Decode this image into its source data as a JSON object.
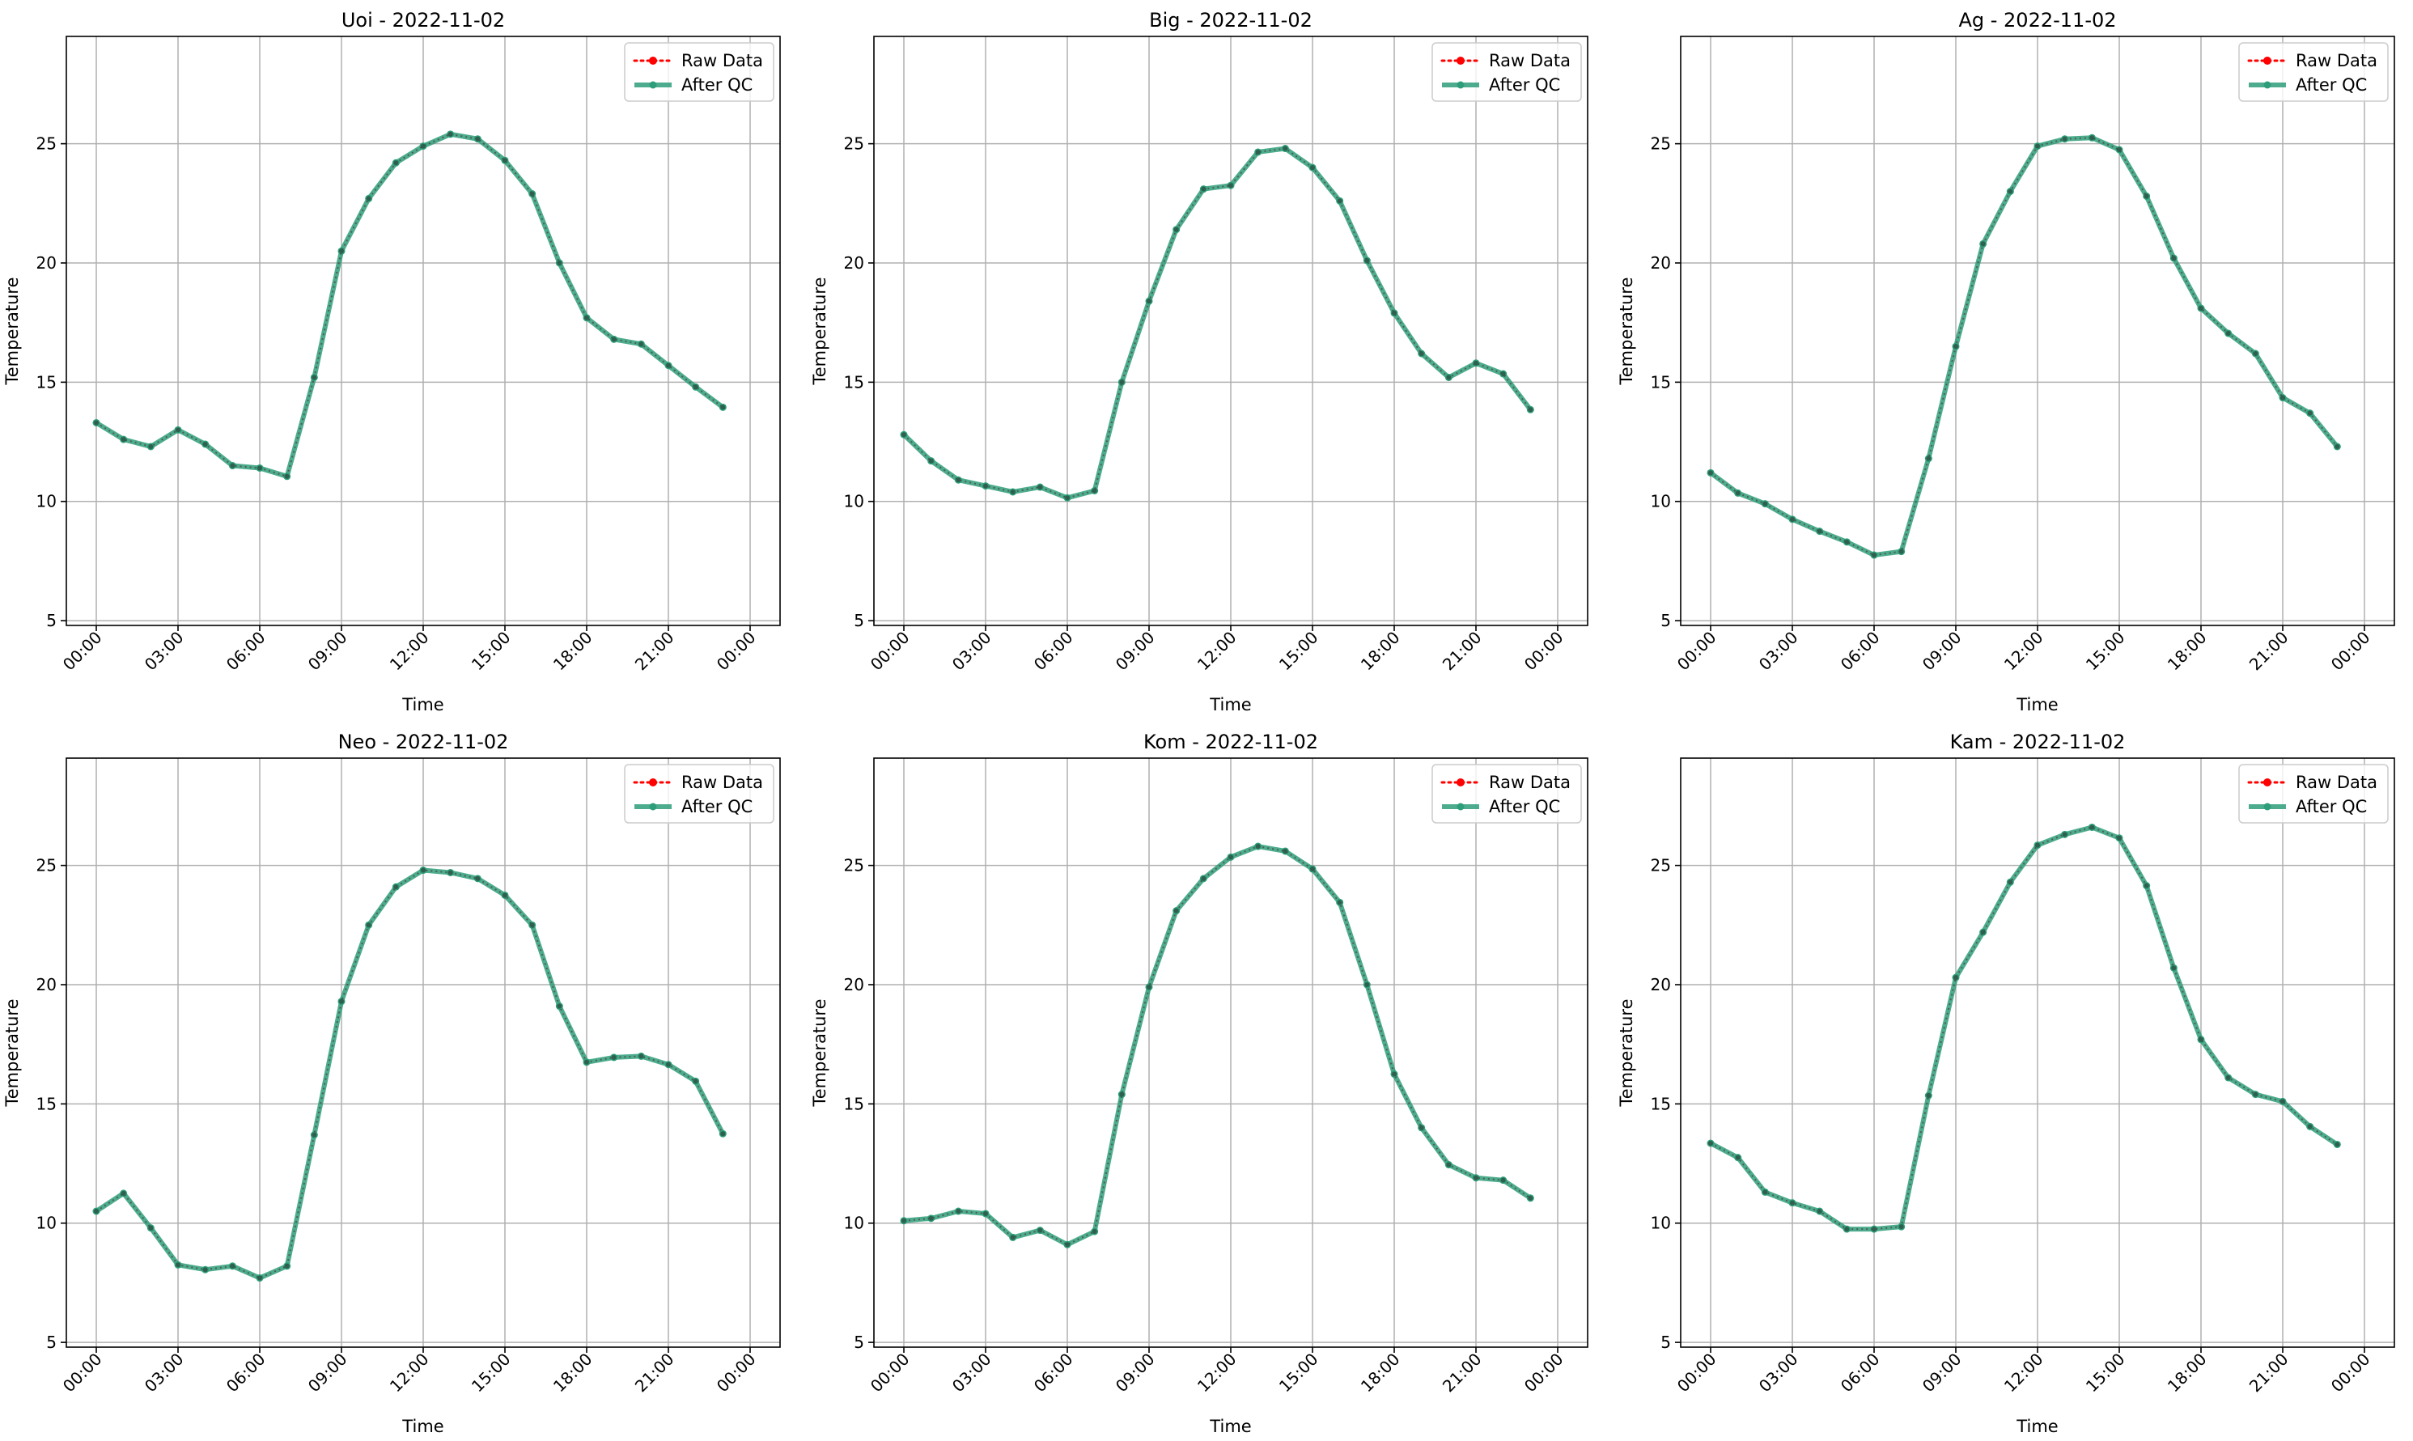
{
  "chart_data": [
    {
      "type": "line",
      "title": "Uoi - 2022-11-02",
      "xlabel": "Time",
      "ylabel": "Temperature",
      "x_ticks": [
        "00:00",
        "03:00",
        "06:00",
        "09:00",
        "12:00",
        "15:00",
        "18:00",
        "21:00",
        "00:00"
      ],
      "y_ticks": [
        5,
        10,
        15,
        20,
        25
      ],
      "xlim_hours": [
        0,
        24
      ],
      "ylim": [
        4.8,
        29.5
      ],
      "grid": true,
      "legend_position": "top-right",
      "x_hours": [
        0,
        1,
        2,
        3,
        4,
        5,
        6,
        7,
        8,
        9,
        10,
        11,
        12,
        13,
        14,
        15,
        16,
        17,
        18,
        19,
        20,
        21,
        22,
        23
      ],
      "series": [
        {
          "name": "Raw Data",
          "color": "#ff0000",
          "style": "dotted",
          "values": [
            13.3,
            12.6,
            12.3,
            13.0,
            12.4,
            11.5,
            11.4,
            11.05,
            15.2,
            20.5,
            22.7,
            24.2,
            24.9,
            25.4,
            25.2,
            24.3,
            22.9,
            20.0,
            17.7,
            16.8,
            16.6,
            15.7,
            14.8,
            13.95
          ]
        },
        {
          "name": "After QC",
          "color": "#2e9e7a",
          "style": "solid",
          "values": [
            13.3,
            12.6,
            12.3,
            13.0,
            12.4,
            11.5,
            11.4,
            11.05,
            15.2,
            20.5,
            22.7,
            24.2,
            24.9,
            25.4,
            25.2,
            24.3,
            22.9,
            20.0,
            17.7,
            16.8,
            16.6,
            15.7,
            14.8,
            13.95
          ]
        }
      ]
    },
    {
      "type": "line",
      "title": "Big - 2022-11-02",
      "xlabel": "Time",
      "ylabel": "Temperature",
      "x_ticks": [
        "00:00",
        "03:00",
        "06:00",
        "09:00",
        "12:00",
        "15:00",
        "18:00",
        "21:00",
        "00:00"
      ],
      "y_ticks": [
        5,
        10,
        15,
        20,
        25
      ],
      "xlim_hours": [
        0,
        24
      ],
      "ylim": [
        4.8,
        29.5
      ],
      "grid": true,
      "legend_position": "top-right",
      "x_hours": [
        0,
        1,
        2,
        3,
        4,
        5,
        6,
        7,
        8,
        9,
        10,
        11,
        12,
        13,
        14,
        15,
        16,
        17,
        18,
        19,
        20,
        21,
        22,
        23
      ],
      "series": [
        {
          "name": "Raw Data",
          "color": "#ff0000",
          "style": "dotted",
          "values": [
            12.8,
            11.7,
            10.9,
            10.65,
            10.4,
            10.6,
            10.15,
            10.45,
            15.0,
            18.4,
            21.4,
            23.1,
            23.25,
            24.65,
            24.8,
            24.0,
            22.6,
            20.1,
            17.9,
            16.2,
            15.2,
            15.8,
            15.35,
            13.85
          ]
        },
        {
          "name": "After QC",
          "color": "#2e9e7a",
          "style": "solid",
          "values": [
            12.8,
            11.7,
            10.9,
            10.65,
            10.4,
            10.6,
            10.15,
            10.45,
            15.0,
            18.4,
            21.4,
            23.1,
            23.25,
            24.65,
            24.8,
            24.0,
            22.6,
            20.1,
            17.9,
            16.2,
            15.2,
            15.8,
            15.35,
            13.85
          ]
        }
      ]
    },
    {
      "type": "line",
      "title": "Ag - 2022-11-02",
      "xlabel": "Time",
      "ylabel": "Temperature",
      "x_ticks": [
        "00:00",
        "03:00",
        "06:00",
        "09:00",
        "12:00",
        "15:00",
        "18:00",
        "21:00",
        "00:00"
      ],
      "y_ticks": [
        5,
        10,
        15,
        20,
        25
      ],
      "xlim_hours": [
        0,
        24
      ],
      "ylim": [
        4.8,
        29.5
      ],
      "grid": true,
      "legend_position": "top-right",
      "x_hours": [
        0,
        1,
        2,
        3,
        4,
        5,
        6,
        7,
        8,
        9,
        10,
        11,
        12,
        13,
        14,
        15,
        16,
        17,
        18,
        19,
        20,
        21,
        22,
        23
      ],
      "series": [
        {
          "name": "Raw Data",
          "color": "#ff0000",
          "style": "dotted",
          "values": [
            11.2,
            10.35,
            9.9,
            9.25,
            8.75,
            8.3,
            7.75,
            7.9,
            11.8,
            16.5,
            20.8,
            23.0,
            24.9,
            25.2,
            25.25,
            24.75,
            22.8,
            20.2,
            18.1,
            17.05,
            16.2,
            14.35,
            13.7,
            12.3
          ]
        },
        {
          "name": "After QC",
          "color": "#2e9e7a",
          "style": "solid",
          "values": [
            11.2,
            10.35,
            9.9,
            9.25,
            8.75,
            8.3,
            7.75,
            7.9,
            11.8,
            16.5,
            20.8,
            23.0,
            24.9,
            25.2,
            25.25,
            24.75,
            22.8,
            20.2,
            18.1,
            17.05,
            16.2,
            14.35,
            13.7,
            12.3
          ]
        }
      ]
    },
    {
      "type": "line",
      "title": "Neo - 2022-11-02",
      "xlabel": "Time",
      "ylabel": "Temperature",
      "x_ticks": [
        "00:00",
        "03:00",
        "06:00",
        "09:00",
        "12:00",
        "15:00",
        "18:00",
        "21:00",
        "00:00"
      ],
      "y_ticks": [
        5,
        10,
        15,
        20,
        25
      ],
      "xlim_hours": [
        0,
        24
      ],
      "ylim": [
        4.8,
        29.5
      ],
      "grid": true,
      "legend_position": "top-right",
      "x_hours": [
        0,
        1,
        2,
        3,
        4,
        5,
        6,
        7,
        8,
        9,
        10,
        11,
        12,
        13,
        14,
        15,
        16,
        17,
        18,
        19,
        20,
        21,
        22,
        23
      ],
      "series": [
        {
          "name": "Raw Data",
          "color": "#ff0000",
          "style": "dotted",
          "values": [
            10.5,
            11.25,
            9.8,
            8.25,
            8.05,
            8.2,
            7.7,
            8.2,
            13.7,
            19.3,
            22.5,
            24.1,
            24.8,
            24.7,
            24.45,
            23.75,
            22.5,
            19.1,
            16.75,
            16.95,
            17.0,
            16.65,
            15.95,
            13.75
          ]
        },
        {
          "name": "After QC",
          "color": "#2e9e7a",
          "style": "solid",
          "values": [
            10.5,
            11.25,
            9.8,
            8.25,
            8.05,
            8.2,
            7.7,
            8.2,
            13.7,
            19.3,
            22.5,
            24.1,
            24.8,
            24.7,
            24.45,
            23.75,
            22.5,
            19.1,
            16.75,
            16.95,
            17.0,
            16.65,
            15.95,
            13.75
          ]
        }
      ]
    },
    {
      "type": "line",
      "title": "Kom - 2022-11-02",
      "xlabel": "Time",
      "ylabel": "Temperature",
      "x_ticks": [
        "00:00",
        "03:00",
        "06:00",
        "09:00",
        "12:00",
        "15:00",
        "18:00",
        "21:00",
        "00:00"
      ],
      "y_ticks": [
        5,
        10,
        15,
        20,
        25
      ],
      "xlim_hours": [
        0,
        24
      ],
      "ylim": [
        4.8,
        29.5
      ],
      "grid": true,
      "legend_position": "top-right",
      "x_hours": [
        0,
        1,
        2,
        3,
        4,
        5,
        6,
        7,
        8,
        9,
        10,
        11,
        12,
        13,
        14,
        15,
        16,
        17,
        18,
        19,
        20,
        21,
        22,
        23
      ],
      "series": [
        {
          "name": "Raw Data",
          "color": "#ff0000",
          "style": "dotted",
          "values": [
            10.1,
            10.2,
            10.5,
            10.4,
            9.4,
            9.7,
            9.1,
            9.65,
            15.4,
            19.9,
            23.1,
            24.45,
            25.35,
            25.8,
            25.6,
            24.85,
            23.45,
            20.0,
            16.25,
            14.0,
            12.45,
            11.9,
            11.8,
            11.05
          ]
        },
        {
          "name": "After QC",
          "color": "#2e9e7a",
          "style": "solid",
          "values": [
            10.1,
            10.2,
            10.5,
            10.4,
            9.4,
            9.7,
            9.1,
            9.65,
            15.4,
            19.9,
            23.1,
            24.45,
            25.35,
            25.8,
            25.6,
            24.85,
            23.45,
            20.0,
            16.25,
            14.0,
            12.45,
            11.9,
            11.8,
            11.05
          ]
        }
      ]
    },
    {
      "type": "line",
      "title": "Kam - 2022-11-02",
      "xlabel": "Time",
      "ylabel": "Temperature",
      "x_ticks": [
        "00:00",
        "03:00",
        "06:00",
        "09:00",
        "12:00",
        "15:00",
        "18:00",
        "21:00",
        "00:00"
      ],
      "y_ticks": [
        5,
        10,
        15,
        20,
        25
      ],
      "xlim_hours": [
        0,
        24
      ],
      "ylim": [
        4.8,
        29.5
      ],
      "grid": true,
      "legend_position": "top-right",
      "x_hours": [
        0,
        1,
        2,
        3,
        4,
        5,
        6,
        7,
        8,
        9,
        10,
        11,
        12,
        13,
        14,
        15,
        16,
        17,
        18,
        19,
        20,
        21,
        22,
        23
      ],
      "series": [
        {
          "name": "Raw Data",
          "color": "#ff0000",
          "style": "dotted",
          "values": [
            13.35,
            12.75,
            11.3,
            10.85,
            10.5,
            9.75,
            9.75,
            9.85,
            15.35,
            20.3,
            22.2,
            24.3,
            25.85,
            26.3,
            26.6,
            26.15,
            24.15,
            20.7,
            17.7,
            16.1,
            15.4,
            15.1,
            14.05,
            13.3
          ]
        },
        {
          "name": "After QC",
          "color": "#2e9e7a",
          "style": "solid",
          "values": [
            13.35,
            12.75,
            11.3,
            10.85,
            10.5,
            9.75,
            9.75,
            9.85,
            15.35,
            20.3,
            22.2,
            24.3,
            25.85,
            26.3,
            26.6,
            26.15,
            24.15,
            20.7,
            17.7,
            16.1,
            15.4,
            15.1,
            14.05,
            13.3
          ]
        }
      ]
    }
  ]
}
